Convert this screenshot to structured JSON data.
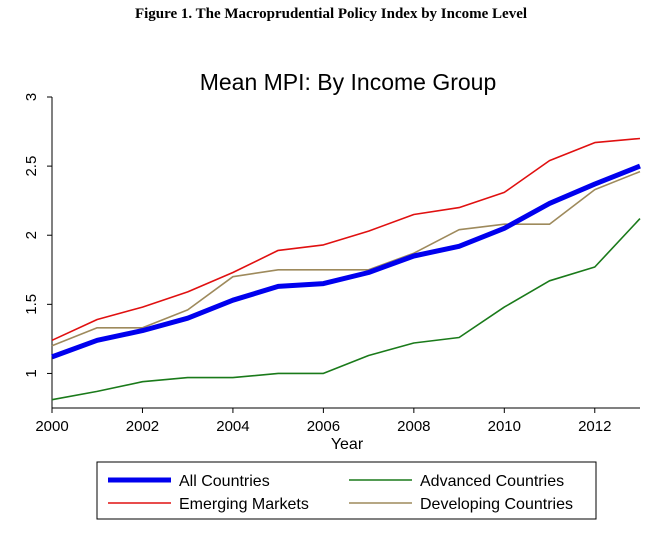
{
  "figure_title": "Figure 1. The Macroprudential Policy Index by Income Level",
  "chart_data": {
    "type": "line",
    "title": "Mean MPI: By Income Group",
    "xlabel": "Year",
    "ylabel": "",
    "xlim": [
      2000,
      2013
    ],
    "ylim": [
      0.75,
      3.0
    ],
    "x_ticks": [
      2000,
      2002,
      2004,
      2006,
      2008,
      2010,
      2012
    ],
    "y_ticks": [
      1,
      1.5,
      2,
      2.5,
      3
    ],
    "y_tick_labels": [
      "1",
      "1.5",
      "2",
      "2.5",
      "3"
    ],
    "grid": false,
    "legend_position": "bottom",
    "x": [
      2000,
      2001,
      2002,
      2003,
      2004,
      2005,
      2006,
      2007,
      2008,
      2009,
      2010,
      2011,
      2012,
      2013
    ],
    "series": [
      {
        "name": "All Countries",
        "color": "#0000ee",
        "width": "thick",
        "values": [
          1.12,
          1.24,
          1.31,
          1.4,
          1.53,
          1.63,
          1.65,
          1.73,
          1.85,
          1.92,
          2.05,
          2.23,
          2.37,
          2.5
        ]
      },
      {
        "name": "Advanced Countries",
        "color": "#1a7a1a",
        "width": "thin",
        "values": [
          0.81,
          0.87,
          0.94,
          0.97,
          0.97,
          1.0,
          1.0,
          1.13,
          1.22,
          1.26,
          1.48,
          1.67,
          1.77,
          2.12
        ]
      },
      {
        "name": "Emerging Markets",
        "color": "#e01010",
        "width": "thin",
        "values": [
          1.24,
          1.39,
          1.48,
          1.59,
          1.73,
          1.89,
          1.93,
          2.03,
          2.15,
          2.2,
          2.31,
          2.54,
          2.67,
          2.7
        ]
      },
      {
        "name": "Developing Countries",
        "color": "#9e8a5c",
        "width": "thin",
        "values": [
          1.2,
          1.33,
          1.33,
          1.46,
          1.7,
          1.75,
          1.75,
          1.75,
          1.87,
          2.04,
          2.08,
          2.08,
          2.33,
          2.46
        ]
      }
    ]
  }
}
